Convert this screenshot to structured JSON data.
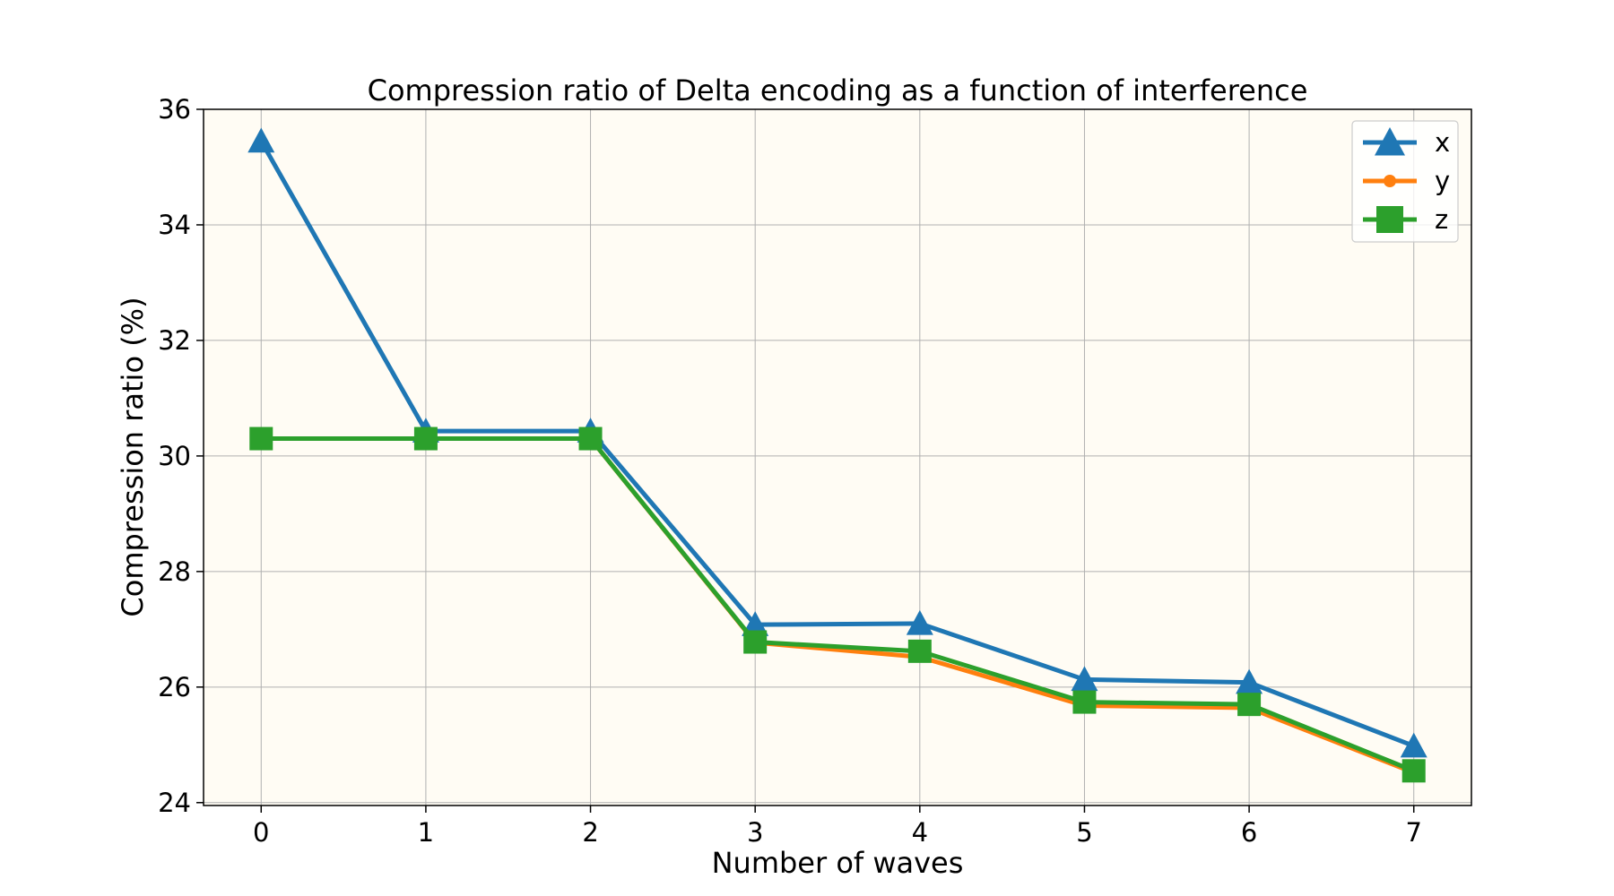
{
  "chart_data": {
    "type": "line",
    "title": "Compression ratio of Delta encoding as a function of interference",
    "xlabel": "Number of waves",
    "ylabel": "Compression ratio (%)",
    "x": [
      0,
      1,
      2,
      3,
      4,
      5,
      6,
      7
    ],
    "xlim": [
      -0.35,
      7.35
    ],
    "ylim": [
      23.95,
      36.0
    ],
    "yticks": [
      24,
      26,
      28,
      30,
      32,
      34,
      36
    ],
    "xticks": [
      0,
      1,
      2,
      3,
      4,
      5,
      6,
      7
    ],
    "grid": true,
    "legend_position": "top-right",
    "plot_background": "#fffcf4",
    "series": [
      {
        "name": "x",
        "color": "#1f77b4",
        "marker": "triangle",
        "values": [
          35.45,
          30.43,
          30.43,
          27.08,
          27.1,
          26.13,
          26.08,
          24.98
        ]
      },
      {
        "name": "y",
        "color": "#ff7f0e",
        "marker": "circle",
        "values": [
          30.3,
          30.3,
          30.3,
          26.77,
          26.52,
          25.68,
          25.64,
          24.52
        ]
      },
      {
        "name": "z",
        "color": "#2ca02c",
        "marker": "square",
        "values": [
          30.3,
          30.3,
          30.3,
          26.78,
          26.62,
          25.74,
          25.7,
          24.55
        ]
      }
    ]
  }
}
